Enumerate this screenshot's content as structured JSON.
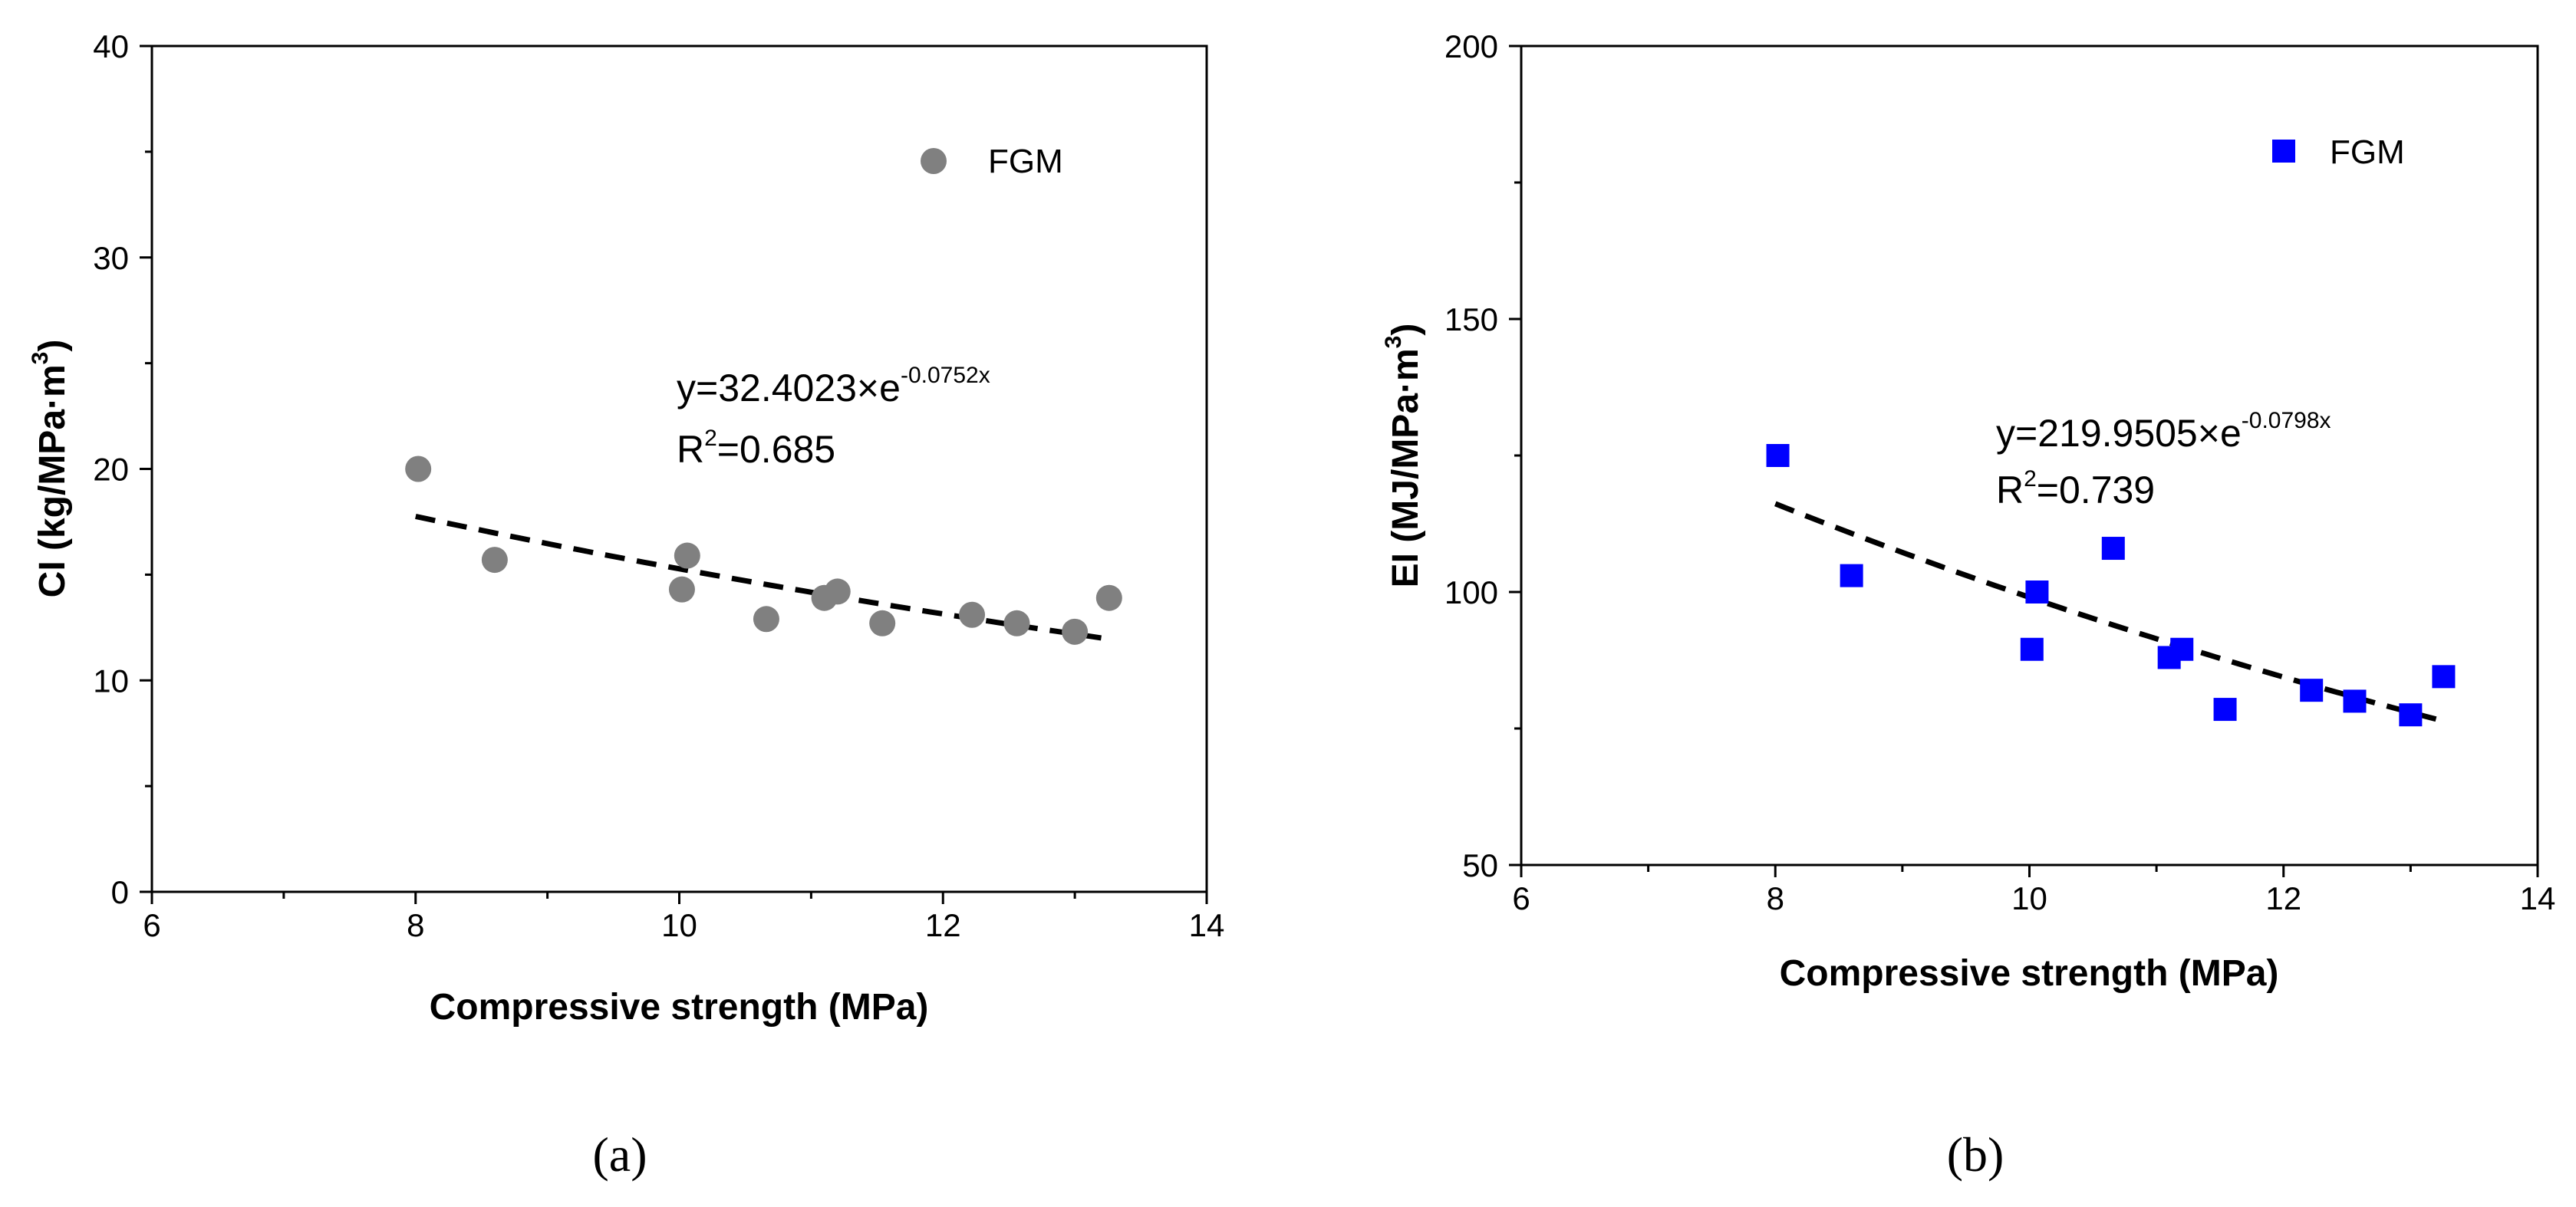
{
  "chart_data": [
    {
      "type": "scatter",
      "panel_label": "(a)",
      "xlabel": "Compressive strength (MPa)",
      "ylabel": {
        "main": "CI (kg/MPa·m",
        "sup": "3",
        "close": ")"
      },
      "xlim": [
        6,
        14
      ],
      "ylim": [
        0,
        40
      ],
      "xticks": [
        6,
        8,
        10,
        12,
        14
      ],
      "yticks": [
        0,
        10,
        20,
        30,
        40
      ],
      "grid": false,
      "legend_position": "top-right",
      "series": [
        {
          "name": "FGM",
          "marker": "circle",
          "color": "#808080",
          "x": [
            8.02,
            8.6,
            10.02,
            10.06,
            10.66,
            11.1,
            11.2,
            11.54,
            12.22,
            12.56,
            13.0,
            13.26
          ],
          "y": [
            20.0,
            15.7,
            14.3,
            15.9,
            12.9,
            13.9,
            14.2,
            12.7,
            13.1,
            12.7,
            12.3,
            13.9
          ]
        }
      ],
      "trendline": {
        "style": "dashed",
        "color": "#000000",
        "a": 32.4023,
        "b": -0.0752,
        "x_range": [
          8.0,
          13.2
        ]
      },
      "annotation": {
        "eq_prefix": "y=32.4023×e",
        "eq_exp": "-0.0752x",
        "r2_prefix": "R",
        "r2_sup": "2",
        "r2_suffix": "=0.685"
      }
    },
    {
      "type": "scatter",
      "panel_label": "(b)",
      "xlabel": "Compressive strength (MPa)",
      "ylabel": {
        "main": "EI (MJ/MPa·m",
        "sup": "3",
        "close": ")"
      },
      "xlim": [
        6,
        14
      ],
      "ylim": [
        50,
        200
      ],
      "xticks": [
        6,
        8,
        10,
        12,
        14
      ],
      "yticks": [
        50,
        100,
        150,
        200
      ],
      "grid": false,
      "legend_position": "top-right",
      "series": [
        {
          "name": "FGM",
          "marker": "square",
          "color": "#0000ff",
          "x": [
            8.02,
            8.6,
            10.02,
            10.06,
            10.66,
            11.1,
            11.2,
            11.54,
            12.22,
            12.56,
            13.0,
            13.26
          ],
          "y": [
            125.0,
            103.0,
            89.5,
            100.0,
            108.0,
            88.0,
            89.5,
            78.5,
            82.0,
            80.0,
            77.5,
            84.5
          ]
        }
      ],
      "trendline": {
        "style": "dashed",
        "color": "#000000",
        "a": 219.9505,
        "b": -0.0798,
        "x_range": [
          8.0,
          13.2
        ]
      },
      "annotation": {
        "eq_prefix": "y=219.9505×e",
        "eq_exp": "-0.0798x",
        "r2_prefix": "R",
        "r2_sup": "2",
        "r2_suffix": "=0.739"
      }
    }
  ]
}
